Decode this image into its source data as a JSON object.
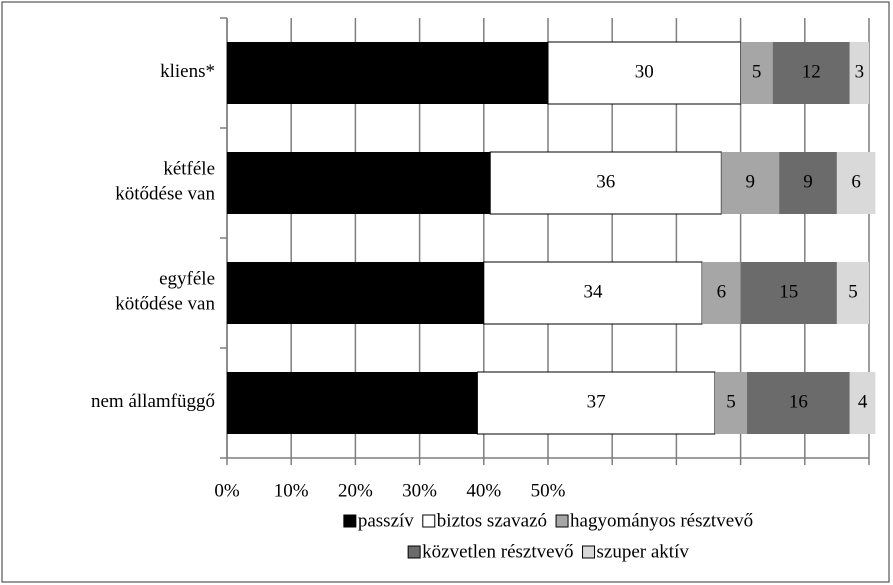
{
  "chart_data": {
    "type": "stacked-bar-horizontal",
    "categories": [
      "kliens*",
      "kétféle\nkötődése van",
      "egyféle\nkötődése van",
      "nem államfüggő"
    ],
    "series": [
      {
        "name": "passzív",
        "color": "#000000",
        "values": [
          50,
          41,
          40,
          39
        ]
      },
      {
        "name": "biztos szavazó",
        "color": "#ffffff",
        "values": [
          30,
          36,
          34,
          37
        ]
      },
      {
        "name": "hagyományos résztvevő",
        "color": "#a6a6a6",
        "values": [
          5,
          9,
          6,
          5
        ]
      },
      {
        "name": "közvetlen résztvevő",
        "color": "#6b6b6b",
        "values": [
          12,
          9,
          15,
          16
        ]
      },
      {
        "name": "szuper aktív",
        "color": "#d9d9d9",
        "values": [
          3,
          6,
          5,
          4
        ]
      }
    ],
    "xlim": [
      0,
      100
    ],
    "xticks": [
      {
        "value": 0,
        "label": "0%"
      },
      {
        "value": 10,
        "label": "10%"
      },
      {
        "value": 20,
        "label": "20%"
      },
      {
        "value": 30,
        "label": "30%"
      },
      {
        "value": 40,
        "label": "40%"
      },
      {
        "value": 50,
        "label": "50%"
      },
      {
        "value": 60,
        "label": null
      },
      {
        "value": 70,
        "label": null
      },
      {
        "value": 80,
        "label": null
      },
      {
        "value": 90,
        "label": null
      },
      {
        "value": 100,
        "label": null
      }
    ],
    "grid": true
  }
}
